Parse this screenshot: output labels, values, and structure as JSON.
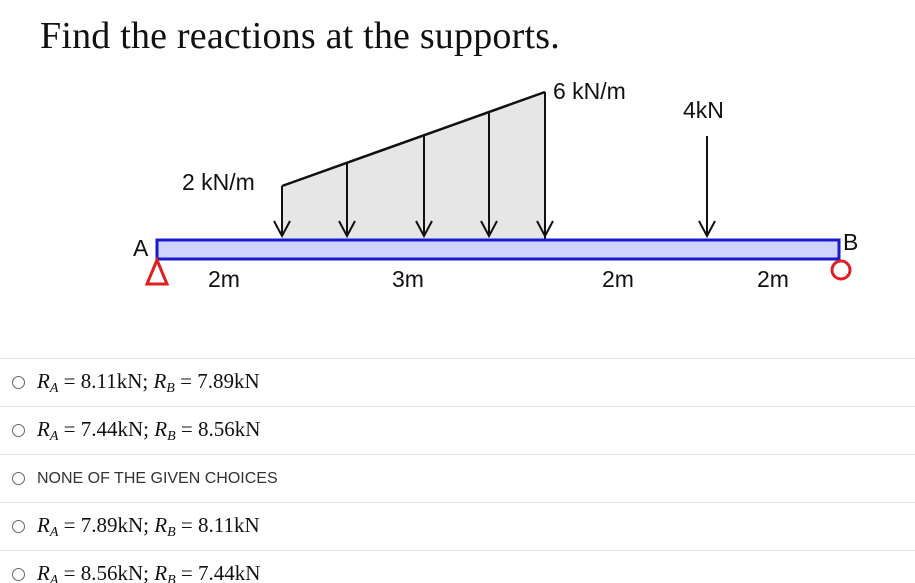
{
  "question": {
    "title": "Find the reactions at the supports."
  },
  "figure": {
    "load_start_label": "2 kN/m",
    "load_end_label": "6 kN/m",
    "point_load_label": "4kN",
    "support_a_label": "A",
    "support_b_label": "B",
    "spans": [
      "2m",
      "3m",
      "2m",
      "2m"
    ],
    "colors": {
      "beam_fill": "#cfd4ff",
      "beam_stroke": "#1a1acc",
      "load_fill": "#e6e6e6",
      "support_a": "#e02020",
      "support_b": "#e02020"
    }
  },
  "choices": [
    {
      "type": "math",
      "ra_sym": "R",
      "ra_sub": "A",
      "ra_val": "= 8.11kN;",
      "rb_sym": "R",
      "rb_sub": "B",
      "rb_val": "= 7.89kN"
    },
    {
      "type": "math",
      "ra_sym": "R",
      "ra_sub": "A",
      "ra_val": "= 7.44kN;",
      "rb_sym": "R",
      "rb_sub": "B",
      "rb_val": "= 8.56kN"
    },
    {
      "type": "text",
      "label": "NONE OF THE GIVEN CHOICES"
    },
    {
      "type": "math",
      "ra_sym": "R",
      "ra_sub": "A",
      "ra_val": "= 7.89kN;",
      "rb_sym": "R",
      "rb_sub": "B",
      "rb_val": "= 8.11kN"
    },
    {
      "type": "math",
      "ra_sym": "R",
      "ra_sub": "A",
      "ra_val": "= 8.56kN;",
      "rb_sym": "R",
      "rb_sub": "B",
      "rb_val": "= 7.44kN"
    }
  ]
}
